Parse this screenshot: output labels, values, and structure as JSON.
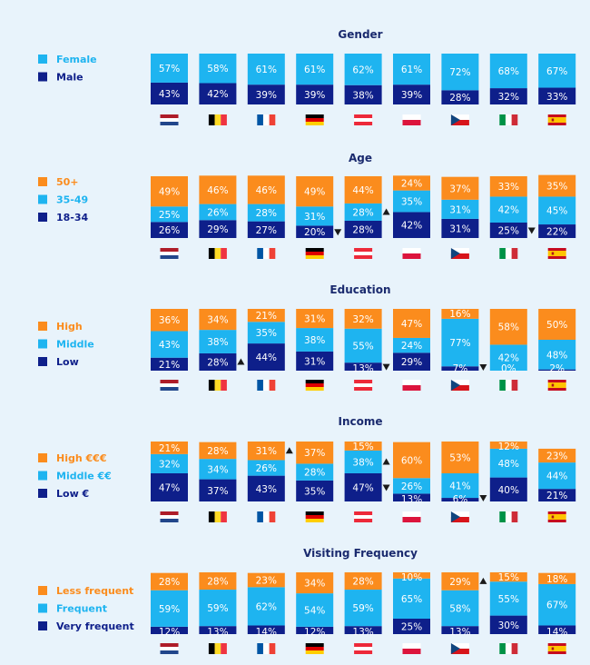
{
  "colors": {
    "background": "#e8f3fb",
    "orange": "#fb8c1d",
    "cyan": "#1eb4f0",
    "navy": "#0e1f8a",
    "title": "#1a2a6e",
    "tri": "#1a1a1a"
  },
  "countries": [
    "Netherlands",
    "Belgium",
    "France",
    "Germany",
    "Austria",
    "Poland",
    "Czechia",
    "Italy",
    "Spain"
  ],
  "chart_data": [
    {
      "type": "bar",
      "stacked": true,
      "title": "Gender",
      "categories": [
        "Netherlands",
        "Belgium",
        "France",
        "Germany",
        "Austria",
        "Poland",
        "Czechia",
        "Italy",
        "Spain"
      ],
      "series": [
        {
          "name": "Female",
          "color": "#1eb4f0",
          "values": [
            57,
            58,
            61,
            61,
            62,
            61,
            72,
            68,
            67
          ]
        },
        {
          "name": "Male",
          "color": "#0e1f8a",
          "values": [
            43,
            42,
            39,
            39,
            38,
            39,
            28,
            32,
            33
          ]
        }
      ],
      "markers": []
    },
    {
      "type": "bar",
      "stacked": true,
      "title": "Age",
      "categories": [
        "Netherlands",
        "Belgium",
        "France",
        "Germany",
        "Austria",
        "Poland",
        "Czechia",
        "Italy",
        "Spain"
      ],
      "series": [
        {
          "name": "50+",
          "color": "#fb8c1d",
          "values": [
            49,
            46,
            46,
            49,
            44,
            24,
            37,
            33,
            35
          ]
        },
        {
          "name": "35-49",
          "color": "#1eb4f0",
          "values": [
            25,
            26,
            28,
            31,
            28,
            35,
            31,
            42,
            45
          ]
        },
        {
          "name": "18-34",
          "color": "#0e1f8a",
          "values": [
            26,
            29,
            27,
            20,
            28,
            42,
            31,
            25,
            22
          ]
        }
      ],
      "markers": [
        {
          "country": "Germany",
          "series": "18-34",
          "direction": "down"
        },
        {
          "country": "Austria",
          "series": "35-49",
          "direction": "up"
        },
        {
          "country": "Italy",
          "series": "18-34",
          "direction": "down"
        }
      ]
    },
    {
      "type": "bar",
      "stacked": true,
      "title": "Education",
      "categories": [
        "Netherlands",
        "Belgium",
        "France",
        "Germany",
        "Austria",
        "Poland",
        "Czechia",
        "Italy",
        "Spain"
      ],
      "series": [
        {
          "name": "High",
          "color": "#fb8c1d",
          "values": [
            36,
            34,
            21,
            31,
            32,
            47,
            16,
            58,
            50
          ]
        },
        {
          "name": "Middle",
          "color": "#1eb4f0",
          "values": [
            43,
            38,
            35,
            38,
            55,
            24,
            77,
            42,
            48
          ]
        },
        {
          "name": "Low",
          "color": "#0e1f8a",
          "values": [
            21,
            28,
            44,
            31,
            13,
            29,
            7,
            0,
            2
          ]
        }
      ],
      "markers": [
        {
          "country": "Belgium",
          "series": "Low",
          "direction": "up"
        },
        {
          "country": "Austria",
          "series": "Low",
          "direction": "down"
        },
        {
          "country": "Czechia",
          "series": "Low",
          "direction": "down"
        }
      ]
    },
    {
      "type": "bar",
      "stacked": true,
      "title": "Income",
      "categories": [
        "Netherlands",
        "Belgium",
        "France",
        "Germany",
        "Austria",
        "Poland",
        "Czechia",
        "Italy",
        "Spain"
      ],
      "series": [
        {
          "name": "High €€€",
          "color": "#fb8c1d",
          "values": [
            21,
            28,
            31,
            37,
            15,
            60,
            53,
            12,
            23
          ]
        },
        {
          "name": "Middle €€",
          "color": "#1eb4f0",
          "values": [
            32,
            34,
            26,
            28,
            38,
            26,
            41,
            48,
            44
          ]
        },
        {
          "name": "Low €",
          "color": "#0e1f8a",
          "values": [
            47,
            37,
            43,
            35,
            47,
            13,
            6,
            40,
            21
          ]
        }
      ],
      "markers": [
        {
          "country": "France",
          "series": "High €€€",
          "direction": "up"
        },
        {
          "country": "Austria",
          "series": "Middle €€",
          "direction": "up"
        },
        {
          "country": "Austria",
          "series": "Low €",
          "direction": "down"
        },
        {
          "country": "Czechia",
          "series": "Low €",
          "direction": "down"
        }
      ]
    },
    {
      "type": "bar",
      "stacked": true,
      "title": "Visiting Frequency",
      "categories": [
        "Netherlands",
        "Belgium",
        "France",
        "Germany",
        "Austria",
        "Poland",
        "Czechia",
        "Italy",
        "Spain"
      ],
      "series": [
        {
          "name": "Less frequent",
          "color": "#fb8c1d",
          "values": [
            28,
            28,
            23,
            34,
            28,
            10,
            29,
            15,
            18
          ]
        },
        {
          "name": "Frequent",
          "color": "#1eb4f0",
          "values": [
            59,
            59,
            62,
            54,
            59,
            65,
            58,
            55,
            67
          ]
        },
        {
          "name": "Very frequent",
          "color": "#0e1f8a",
          "values": [
            12,
            13,
            14,
            12,
            13,
            25,
            13,
            30,
            14
          ]
        }
      ],
      "markers": [
        {
          "country": "Czechia",
          "series": "Less frequent",
          "direction": "up"
        }
      ]
    }
  ]
}
